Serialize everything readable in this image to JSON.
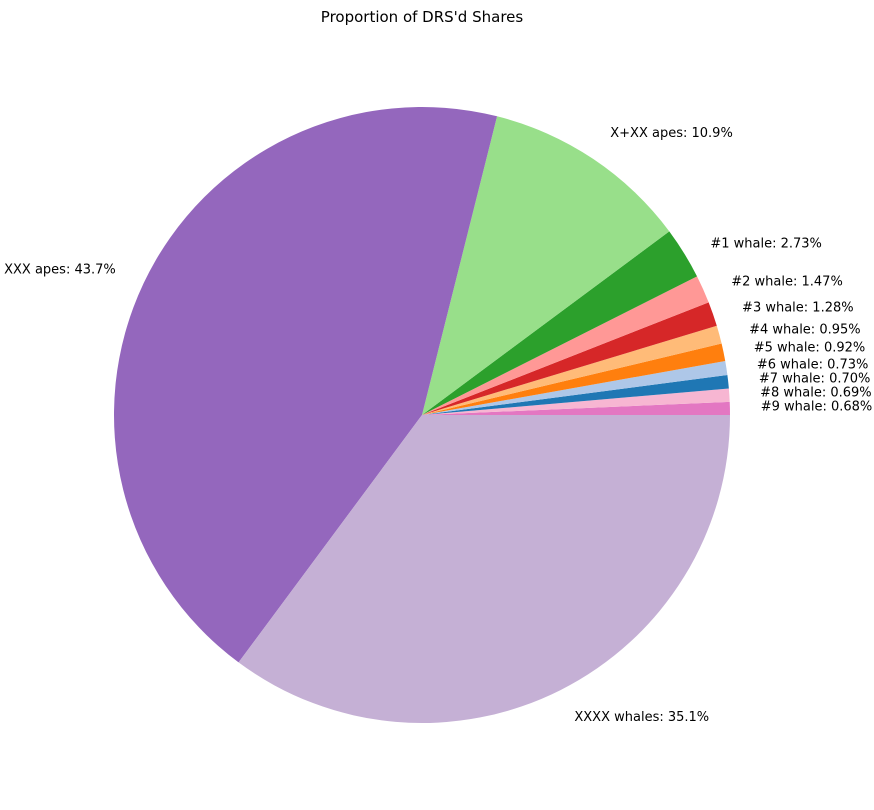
{
  "chart_data": {
    "type": "pie",
    "title": "Proportion of DRS'd Shares",
    "start_angle_deg": 0,
    "direction": "counterclockwise",
    "slices": [
      {
        "label": "#9 whale",
        "value": 0.68,
        "pct_text": "0.68%",
        "color": "#e377c2"
      },
      {
        "label": "#8 whale",
        "value": 0.69,
        "pct_text": "0.69%",
        "color": "#f7b6d2"
      },
      {
        "label": "#7 whale",
        "value": 0.7,
        "pct_text": "0.70%",
        "color": "#1f77b4"
      },
      {
        "label": "#6 whale",
        "value": 0.73,
        "pct_text": "0.73%",
        "color": "#aec7e8"
      },
      {
        "label": "#5 whale",
        "value": 0.92,
        "pct_text": "0.92%",
        "color": "#ff7f0e"
      },
      {
        "label": "#4 whale",
        "value": 0.95,
        "pct_text": "0.95%",
        "color": "#ffbb78"
      },
      {
        "label": "#3 whale",
        "value": 1.28,
        "pct_text": "1.28%",
        "color": "#d62728"
      },
      {
        "label": "#2 whale",
        "value": 1.47,
        "pct_text": "1.47%",
        "color": "#ff9896"
      },
      {
        "label": "#1 whale",
        "value": 2.73,
        "pct_text": "2.73%",
        "color": "#2ca02c"
      },
      {
        "label": "X+XX apes",
        "value": 10.9,
        "pct_text": "10.9%",
        "color": "#98df8a"
      },
      {
        "label": "XXX apes",
        "value": 43.7,
        "pct_text": "43.7%",
        "color": "#9467bd"
      },
      {
        "label": "XXXX whales",
        "value": 35.1,
        "pct_text": "35.1%",
        "color": "#c5b0d5"
      }
    ]
  }
}
